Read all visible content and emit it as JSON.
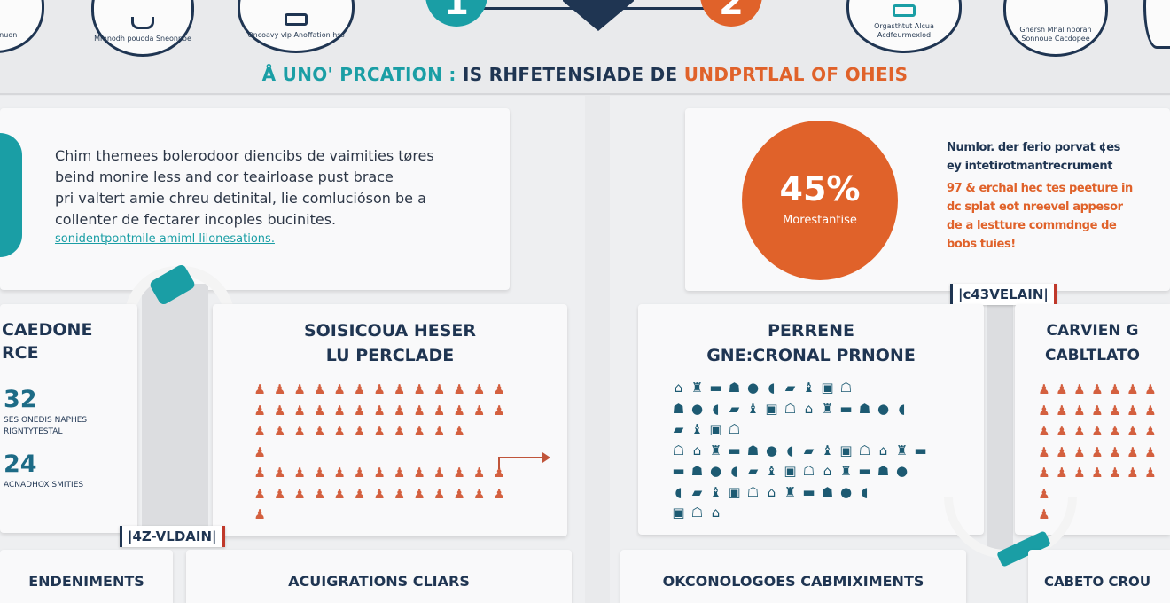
{
  "colors": {
    "teal": "#1a9ea5",
    "navy": "#1f3552",
    "orange": "#e0622a",
    "background": "#e9eaec"
  },
  "header": {
    "badges_left": [
      {
        "label": "Cltion fnuon",
        "icon": "badge-icon"
      },
      {
        "label": "Mmnodh pouoda Sneonnoe",
        "icon": "bowl-icon"
      },
      {
        "label": "Oncoavy vlp Anoffation hss",
        "icon": "monitor-icon"
      }
    ],
    "steps": [
      {
        "number": "1",
        "color": "#1a9ea5"
      },
      {
        "number": "",
        "icon": "shield-icon",
        "color": "#1f3552"
      },
      {
        "number": "2",
        "color": "#e0622a"
      }
    ],
    "badges_right": [
      {
        "label": "Orgasthtut Alcua Acdfeurmexlod",
        "icon": "monitor-icon"
      },
      {
        "label": "Ghersh Mhal nporan Sonnoue Cacdopee",
        "icon": "tent-icon"
      },
      {
        "label": "",
        "icon": "badge-icon"
      }
    ]
  },
  "title": {
    "part1": "Å UNO' PRCATION :",
    "part2": "IS RHFETENSIADE DE",
    "part3": "UNDPRTLAL OF OHEIS"
  },
  "left": {
    "intro": {
      "lines": [
        "Chim themees bolerodoor diencibs de vaimities tøres",
        "beind monire less and cor teairloase pust brace",
        "pri valtert amie chreu detinital, lie comlucióson be a",
        "collenter de fectarer incoples bucinites."
      ],
      "link": "sonidentpontmile amiml lilonesations."
    },
    "stats": {
      "heading_line1": "CAEDONE",
      "heading_line2": "RCE",
      "items": [
        {
          "value": "32",
          "caption": "SES ONEDIS NAPHES RIGNTYTESTAL"
        },
        {
          "value": "24",
          "caption": "ACNADHOX SMITIES"
        }
      ]
    },
    "icons_card": {
      "heading_line1": "SOISICOUA HESER",
      "heading_line2": "LU PERCLADE",
      "rows": [
        13,
        13,
        11,
        1,
        13,
        13,
        1
      ]
    },
    "tag": "|4Z-VLDAIN|",
    "bottom": [
      "ENDENIMENTS",
      "ACUIGRATIONS CLIARS"
    ]
  },
  "right": {
    "stat": {
      "value": "45%",
      "caption": "Morestantise"
    },
    "text": {
      "navy_lines": [
        "Numlor. der ferio porvat ¢es",
        "ey intetirotmantrecrument"
      ],
      "orange_lines": [
        "97 & erchal hec tes peeture in",
        "dc splat eot nreevel appesor",
        "de a lestture commdnge de",
        "bobs tuies!"
      ]
    },
    "tag": "|c43VELAIN|",
    "icons_card": {
      "heading_line1": "PERRENE",
      "heading_line2": "GNE:CRONAL PRNONE",
      "rows": [
        10,
        13,
        4,
        14,
        13,
        11,
        3
      ]
    },
    "icons_card2": {
      "heading_line1": "CARVIEN G",
      "heading_line2": "CABLTLATO",
      "rows": [
        7,
        7,
        7,
        7,
        7,
        1,
        1
      ]
    },
    "bottom": [
      "OKCONOLOGOES CABMIXIMENTS",
      "CABETO CROU"
    ]
  }
}
